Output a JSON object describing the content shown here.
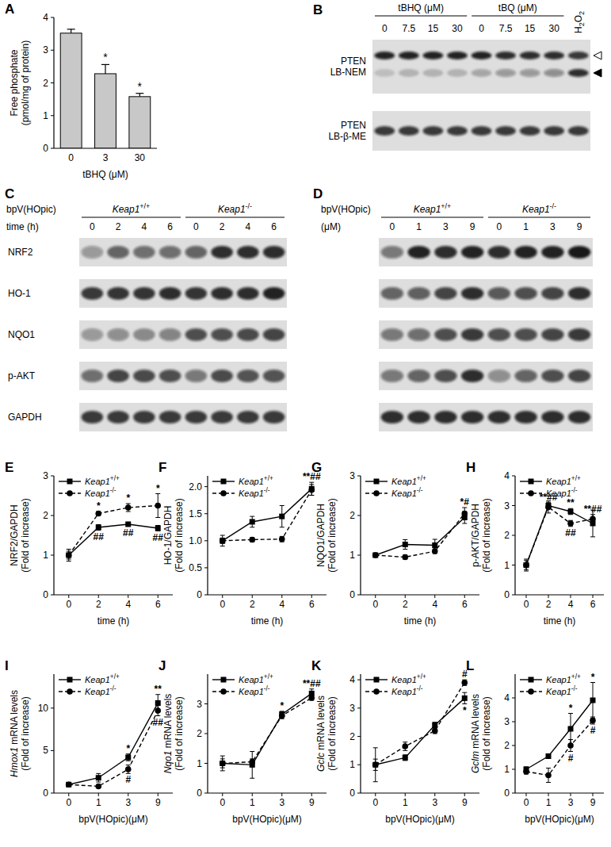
{
  "chart_data": [
    {
      "panel_label": "A",
      "type": "bar",
      "categories": [
        "0",
        "3",
        "30"
      ],
      "values": [
        3.52,
        2.28,
        1.58
      ],
      "errors": [
        0.12,
        0.28,
        0.1
      ],
      "significance": [
        null,
        "*",
        "*"
      ],
      "color": "#c8c8c8",
      "x_label": "tBHQ (μM)",
      "y_label": [
        "Free phosphate",
        "(pmol/mg of protein)"
      ],
      "ylim": [
        0,
        4
      ],
      "yticks": [
        0,
        1,
        2,
        3,
        4
      ]
    },
    {
      "panel_label": "E",
      "type": "line",
      "categories": [
        "0",
        "2",
        "4",
        "6"
      ],
      "x_label": "time (h)",
      "y_label": [
        "NRF2/GAPDH",
        "(Fold of increase)"
      ],
      "ylim": [
        0,
        3
      ],
      "yticks": [
        0,
        1,
        2,
        3
      ],
      "legend": "upper left",
      "series": [
        {
          "name": "Keap1+/+",
          "color": "#000000",
          "marker": "square",
          "line_style": "solid",
          "values": [
            1.0,
            1.7,
            1.78,
            1.68
          ],
          "errors": [
            0.15,
            0.07,
            0.05,
            0.07
          ],
          "significance": [
            null,
            "##",
            "##",
            "##"
          ]
        },
        {
          "name": "Keap1-/-",
          "color": "#000000",
          "marker": "circle",
          "line_style": "dashed",
          "values": [
            1.0,
            2.05,
            2.2,
            2.25
          ],
          "errors": [
            0.1,
            0.05,
            0.1,
            0.3
          ],
          "significance": [
            null,
            "*",
            "*",
            "*"
          ]
        }
      ]
    },
    {
      "panel_label": "F",
      "type": "line",
      "categories": [
        "0",
        "2",
        "4",
        "6"
      ],
      "x_label": "time (h)",
      "y_label": [
        "HO-1/GAPDH",
        "(Fold of increase)"
      ],
      "ylim": [
        0,
        2.2
      ],
      "yticks": [
        0,
        0.5,
        {
          "value": 1,
          "label": "1.0"
        },
        1.5,
        {
          "value": 2,
          "label": "2.0"
        }
      ],
      "legend": "upper left",
      "series": [
        {
          "name": "Keap1+/+",
          "color": "#000000",
          "marker": "square",
          "line_style": "solid",
          "values": [
            1.0,
            1.35,
            1.45,
            1.96
          ],
          "errors": [
            0.1,
            0.1,
            0.2,
            0.12
          ],
          "significance": [
            null,
            null,
            null,
            "**##"
          ]
        },
        {
          "name": "Keap1-/-",
          "color": "#000000",
          "marker": "circle",
          "line_style": "dashed",
          "values": [
            1.0,
            1.02,
            1.03,
            1.94
          ],
          "errors": [
            0.05,
            0.04,
            0.05,
            0.1
          ],
          "significance": [
            null,
            null,
            null,
            null
          ]
        }
      ]
    },
    {
      "panel_label": "G",
      "type": "line",
      "categories": [
        "0",
        "2",
        "4",
        "6"
      ],
      "x_label": "time (h)",
      "y_label": [
        "NQO1/GAPDH",
        "(Fold of increase)"
      ],
      "ylim": [
        0,
        3
      ],
      "yticks": [
        0,
        1,
        2,
        3
      ],
      "legend": "upper left",
      "series": [
        {
          "name": "Keap1+/+",
          "color": "#000000",
          "marker": "square",
          "line_style": "solid",
          "values": [
            1.0,
            1.27,
            1.25,
            1.95
          ],
          "errors": [
            0.03,
            0.12,
            0.15,
            0.15
          ],
          "significance": [
            null,
            null,
            null,
            null
          ]
        },
        {
          "name": "Keap1-/-",
          "color": "#000000",
          "marker": "circle",
          "line_style": "dashed",
          "values": [
            1.0,
            0.95,
            1.1,
            2.05
          ],
          "errors": [
            0.03,
            0.05,
            0.06,
            0.15
          ],
          "significance": [
            null,
            null,
            null,
            "*#"
          ]
        }
      ]
    },
    {
      "panel_label": "H",
      "type": "line",
      "categories": [
        "0",
        "2",
        "4",
        "6"
      ],
      "x_label": "time (h)",
      "y_label": [
        "p-AKT/GAPDH",
        "(Fold of increase)"
      ],
      "ylim": [
        0,
        4
      ],
      "yticks": [
        0,
        1,
        2,
        3,
        4
      ],
      "legend": "upper left",
      "series": [
        {
          "name": "Keap1+/+",
          "color": "#000000",
          "marker": "square",
          "line_style": "solid",
          "values": [
            1.0,
            3.0,
            2.8,
            2.4
          ],
          "errors": [
            0.2,
            0.1,
            0.1,
            0.45
          ],
          "significance": [
            null,
            "**##",
            "**",
            null
          ]
        },
        {
          "name": "Keap1-/-",
          "color": "#000000",
          "marker": "circle",
          "line_style": "dashed",
          "values": [
            1.0,
            2.95,
            2.4,
            2.55
          ],
          "errors": [
            0.15,
            0.2,
            0.1,
            0.15
          ],
          "significance": [
            null,
            null,
            "##",
            "**##"
          ]
        }
      ]
    },
    {
      "panel_label": "I",
      "type": "line",
      "categories": [
        "0",
        "1",
        "3",
        "9"
      ],
      "x_label": "bpV(HOpic)(μM)",
      "y_label": [
        "Hmox1 mRNA levels",
        "(Fold of increase)"
      ],
      "ylim": [
        0,
        14
      ],
      "yticks": [
        0,
        5,
        10
      ],
      "legend": "upper left",
      "series": [
        {
          "name": "Keap1+/+",
          "color": "#000000",
          "marker": "square",
          "line_style": "solid",
          "values": [
            1.0,
            1.8,
            4.2,
            10.6
          ],
          "errors": [
            0.2,
            0.5,
            0.4,
            1.0
          ],
          "significance": [
            null,
            null,
            "*",
            "**"
          ]
        },
        {
          "name": "Keap1-/-",
          "color": "#000000",
          "marker": "circle",
          "line_style": "dashed",
          "values": [
            1.0,
            0.8,
            2.8,
            9.7
          ],
          "errors": [
            0.2,
            0.1,
            0.5,
            0.6
          ],
          "significance": [
            null,
            null,
            "#",
            "##"
          ]
        }
      ]
    },
    {
      "panel_label": "J",
      "type": "line",
      "categories": [
        "0",
        "1",
        "3",
        "9"
      ],
      "x_label": "bpV(HOpic)(μM)",
      "y_label": [
        "Nqo1 mRNA levels",
        "(Fold of increase)"
      ],
      "ylim": [
        0,
        4
      ],
      "yticks": [
        0,
        1,
        2,
        3
      ],
      "legend": "upper left",
      "series": [
        {
          "name": "Keap1+/+",
          "color": "#000000",
          "marker": "square",
          "line_style": "solid",
          "values": [
            1.0,
            0.95,
            2.65,
            3.35
          ],
          "errors": [
            0.25,
            0.45,
            0.1,
            0.15
          ],
          "significance": [
            null,
            null,
            "*",
            "**##"
          ]
        },
        {
          "name": "Keap1-/-",
          "color": "#000000",
          "marker": "circle",
          "line_style": "dashed",
          "values": [
            1.0,
            1.05,
            2.6,
            3.2
          ],
          "errors": [
            0.15,
            0.1,
            0.1,
            0.08
          ],
          "significance": [
            null,
            null,
            null,
            null
          ]
        }
      ]
    },
    {
      "panel_label": "K",
      "type": "line",
      "categories": [
        "0",
        "1",
        "3",
        "9"
      ],
      "x_label": "bpV(HOpic)(μM)",
      "y_label": [
        "Gclc mRNA levels",
        "(Fold of increase)"
      ],
      "ylim": [
        0,
        4.2
      ],
      "yticks": [
        0,
        1,
        2,
        3,
        4
      ],
      "legend": "upper left",
      "series": [
        {
          "name": "Keap1+/+",
          "color": "#000000",
          "marker": "square",
          "line_style": "solid",
          "values": [
            1.0,
            1.25,
            2.4,
            3.35
          ],
          "errors": [
            0.6,
            0.1,
            0.1,
            0.2
          ],
          "significance": [
            null,
            null,
            null,
            "*"
          ]
        },
        {
          "name": "Keap1-/-",
          "color": "#000000",
          "marker": "circle",
          "line_style": "dashed",
          "values": [
            1.0,
            1.65,
            2.2,
            3.9
          ],
          "errors": [
            0.2,
            0.15,
            0.1,
            0.1
          ],
          "significance": [
            null,
            null,
            null,
            "#"
          ]
        }
      ]
    },
    {
      "panel_label": "L",
      "type": "line",
      "categories": [
        "0",
        "1",
        "3",
        "9"
      ],
      "x_label": "bpV(HOpic)(μM)",
      "y_label": [
        "Gclm mRNA levels",
        "(Fold of increase)"
      ],
      "ylim": [
        0,
        5
      ],
      "yticks": [
        0,
        1,
        2,
        3,
        4
      ],
      "legend": "upper left",
      "series": [
        {
          "name": "Keap1+/+",
          "color": "#000000",
          "marker": "square",
          "line_style": "solid",
          "values": [
            1.0,
            1.55,
            2.7,
            3.9
          ],
          "errors": [
            0.1,
            0.1,
            0.65,
            0.75
          ],
          "significance": [
            null,
            null,
            "*",
            "*"
          ]
        },
        {
          "name": "Keap1-/-",
          "color": "#000000",
          "marker": "circle",
          "line_style": "dashed",
          "values": [
            0.9,
            0.75,
            2.0,
            3.05
          ],
          "errors": [
            0.1,
            0.3,
            0.25,
            0.15
          ],
          "significance": [
            null,
            null,
            "#",
            "#"
          ]
        }
      ]
    }
  ],
  "blots": [
    {
      "panel_label": "B",
      "groups": [
        {
          "label": "tBHQ (μM)",
          "lanes": [
            "0",
            "7.5",
            "15",
            "30"
          ]
        },
        {
          "label": "tBQ (μM)",
          "lanes": [
            "0",
            "7.5",
            "15",
            "30"
          ]
        }
      ],
      "extra_lanes": [
        "H2O2"
      ],
      "rows": [
        {
          "labels": [
            "PTEN",
            "LB-NEM"
          ],
          "bands": [
            [
              0.9,
              0.9,
              0.9,
              0.9,
              0.9,
              0.85,
              0.85,
              0.85,
              0.8
            ],
            [
              0.15,
              0.2,
              0.2,
              0.2,
              0.25,
              0.35,
              0.35,
              0.4,
              0.85
            ]
          ]
        },
        {
          "labels": [
            "PTEN",
            "LB-β-ME"
          ],
          "bands": [
            [
              0.8,
              0.8,
              0.8,
              0.8,
              0.8,
              0.8,
              0.8,
              0.8,
              0.8
            ]
          ]
        }
      ]
    },
    {
      "panel_label": "C",
      "header": [
        "bpV(HOpic)",
        "time (h)"
      ],
      "groups": [
        {
          "label": "Keap1+/+",
          "lanes": [
            "0",
            "2",
            "4",
            "6"
          ]
        },
        {
          "label": "Keap1-/-",
          "lanes": [
            "0",
            "2",
            "4",
            "6"
          ]
        }
      ],
      "rows": [
        {
          "labels": [
            "NRF2"
          ],
          "bands": [
            [
              0.35,
              0.6,
              0.55,
              0.55,
              0.6,
              0.85,
              0.85,
              0.85
            ]
          ]
        },
        {
          "labels": [
            "HO-1"
          ],
          "bands": [
            [
              0.8,
              0.82,
              0.82,
              0.85,
              0.82,
              0.85,
              0.85,
              0.9
            ]
          ]
        },
        {
          "labels": [
            "NQO1"
          ],
          "bands": [
            [
              0.35,
              0.4,
              0.38,
              0.45,
              0.7,
              0.7,
              0.72,
              0.75
            ]
          ]
        },
        {
          "labels": [
            "p-AKT"
          ],
          "bands": [
            [
              0.55,
              0.75,
              0.72,
              0.7,
              0.5,
              0.72,
              0.68,
              0.68
            ]
          ]
        },
        {
          "labels": [
            "GAPDH"
          ],
          "bands": [
            [
              0.8,
              0.8,
              0.8,
              0.8,
              0.8,
              0.8,
              0.8,
              0.8
            ]
          ]
        }
      ]
    },
    {
      "panel_label": "D",
      "header": [
        "bpV(HOpic)",
        "(μM)"
      ],
      "groups": [
        {
          "label": "Keap1+/+",
          "lanes": [
            "0",
            "1",
            "3",
            "9"
          ]
        },
        {
          "label": "Keap1-/-",
          "lanes": [
            "0",
            "1",
            "3",
            "9"
          ]
        }
      ],
      "rows": [
        {
          "bands": [
            [
              0.5,
              0.9,
              0.85,
              0.9,
              0.85,
              0.9,
              0.9,
              0.95
            ]
          ]
        },
        {
          "bands": [
            [
              0.6,
              0.62,
              0.75,
              0.85,
              0.65,
              0.7,
              0.75,
              0.85
            ]
          ]
        },
        {
          "bands": [
            [
              0.5,
              0.55,
              0.7,
              0.8,
              0.7,
              0.7,
              0.75,
              0.8
            ]
          ]
        },
        {
          "bands": [
            [
              0.5,
              0.6,
              0.7,
              0.85,
              0.4,
              0.6,
              0.7,
              0.75
            ]
          ]
        },
        {
          "bands": [
            [
              0.85,
              0.85,
              0.85,
              0.85,
              0.85,
              0.85,
              0.85,
              0.85
            ]
          ]
        }
      ]
    }
  ]
}
